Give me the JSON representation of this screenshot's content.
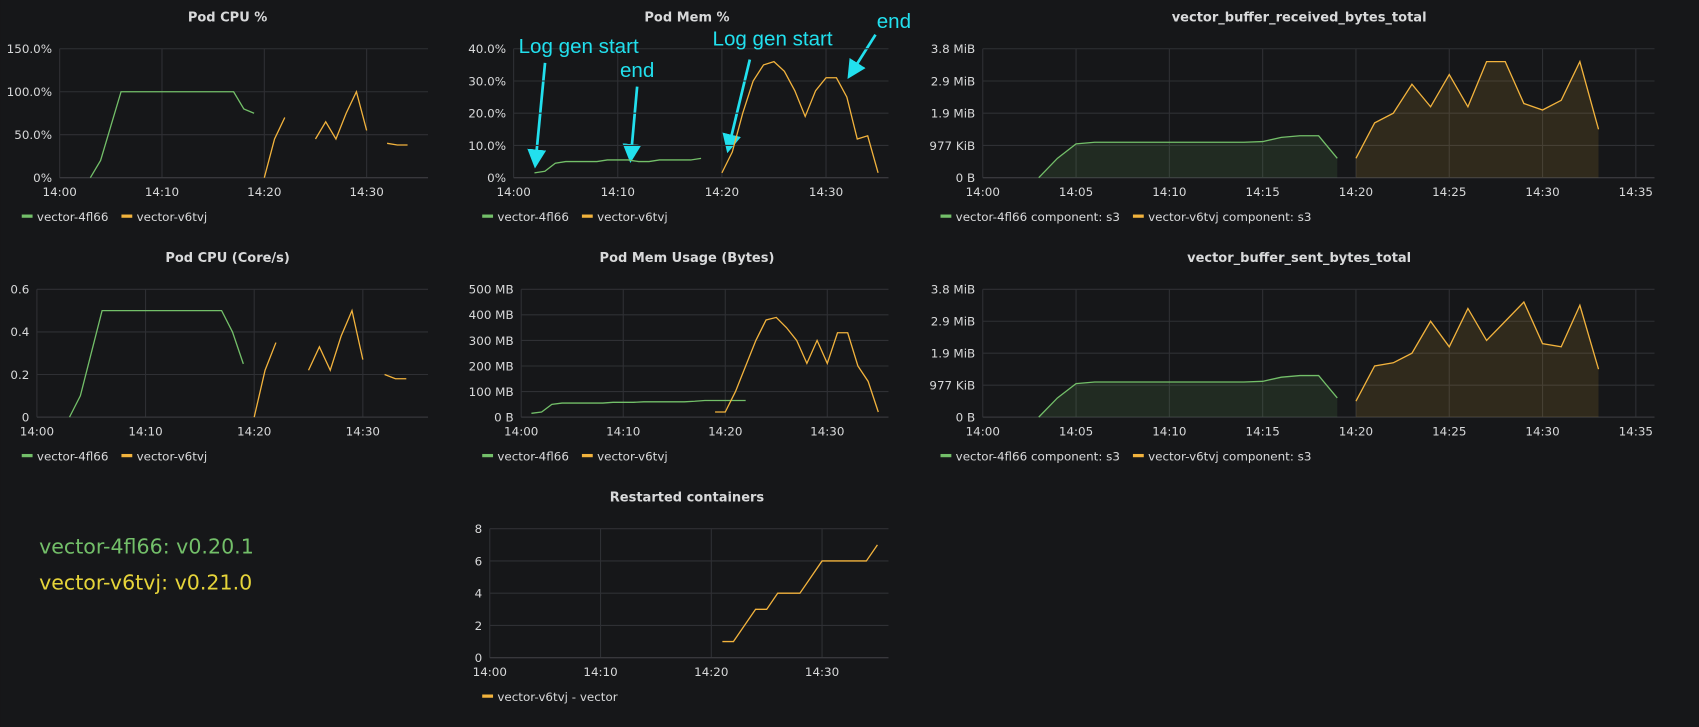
{
  "chart_data": [
    {
      "type": "line",
      "title": "Pod CPU %",
      "x": [
        "14:00",
        "14:01",
        "14:02",
        "14:03",
        "14:04",
        "14:05",
        "14:06",
        "14:07",
        "14:08",
        "14:09",
        "14:10",
        "14:11",
        "14:12",
        "14:13",
        "14:14",
        "14:15",
        "14:16",
        "14:17",
        "14:18",
        "14:19",
        "14:20",
        "14:21",
        "14:22",
        "14:23",
        "14:24",
        "14:25",
        "14:26",
        "14:27",
        "14:28",
        "14:29",
        "14:30",
        "14:31",
        "14:32",
        "14:33",
        "14:34",
        "14:35"
      ],
      "xlim": [
        "14:00",
        "14:36"
      ],
      "xticks": [
        "14:00",
        "14:10",
        "14:20",
        "14:30"
      ],
      "ylim": [
        0,
        150
      ],
      "yticks": [
        {
          "value": 0,
          "label": "0%"
        },
        {
          "value": 50,
          "label": "50.0%"
        },
        {
          "value": 100,
          "label": "100.0%"
        },
        {
          "value": 150,
          "label": "150.0%"
        }
      ],
      "grid": true,
      "series": [
        {
          "name": "vector-4fl66",
          "color": "#73bf69",
          "values": [
            null,
            null,
            null,
            0,
            20,
            60,
            100,
            100,
            100,
            100,
            100,
            100,
            100,
            100,
            100,
            100,
            100,
            100,
            80,
            75,
            null,
            null,
            null,
            null,
            null,
            null,
            null,
            null,
            null,
            null,
            null,
            null,
            null,
            null,
            null,
            null
          ]
        },
        {
          "name": "vector-v6tvj",
          "color": "#f2b33d",
          "values": [
            null,
            null,
            null,
            null,
            null,
            null,
            null,
            null,
            null,
            null,
            null,
            null,
            null,
            null,
            null,
            null,
            null,
            null,
            null,
            null,
            0,
            45,
            70,
            null,
            null,
            45,
            65,
            45,
            75,
            100,
            55,
            null,
            40,
            38,
            38,
            null
          ]
        }
      ]
    },
    {
      "type": "line",
      "title": "Pod Mem %",
      "x": [
        "14:00",
        "14:01",
        "14:02",
        "14:03",
        "14:04",
        "14:05",
        "14:06",
        "14:07",
        "14:08",
        "14:09",
        "14:10",
        "14:11",
        "14:12",
        "14:13",
        "14:14",
        "14:15",
        "14:16",
        "14:17",
        "14:18",
        "14:19",
        "14:20",
        "14:21",
        "14:22",
        "14:23",
        "14:24",
        "14:25",
        "14:26",
        "14:27",
        "14:28",
        "14:29",
        "14:30",
        "14:31",
        "14:32",
        "14:33",
        "14:34",
        "14:35"
      ],
      "xlim": [
        "14:00",
        "14:36"
      ],
      "xticks": [
        "14:00",
        "14:10",
        "14:20",
        "14:30"
      ],
      "ylim": [
        0,
        40
      ],
      "yticks": [
        {
          "value": 0,
          "label": "0%"
        },
        {
          "value": 10,
          "label": "10.0%"
        },
        {
          "value": 20,
          "label": "20.0%"
        },
        {
          "value": 30,
          "label": "30.0%"
        },
        {
          "value": 40,
          "label": "40.0%"
        }
      ],
      "grid": true,
      "annotations": [
        "Log gen start",
        "end",
        "Log gen start",
        "end"
      ],
      "series": [
        {
          "name": "vector-4fl66",
          "color": "#73bf69",
          "values": [
            null,
            null,
            1.5,
            2,
            4.5,
            5,
            5,
            5,
            5,
            5.5,
            5.5,
            5.5,
            5,
            5,
            5.5,
            5.5,
            5.5,
            5.5,
            6,
            null,
            null,
            null,
            null,
            null,
            null,
            null,
            null,
            null,
            null,
            null,
            null,
            null,
            null,
            null,
            null,
            null
          ]
        },
        {
          "name": "vector-v6tvj",
          "color": "#f2b33d",
          "values": [
            null,
            null,
            null,
            null,
            null,
            null,
            null,
            null,
            null,
            null,
            null,
            null,
            null,
            null,
            null,
            null,
            null,
            null,
            null,
            null,
            1.5,
            8,
            20,
            30,
            35,
            36,
            33,
            27,
            19,
            27,
            31,
            31,
            25,
            12,
            13,
            1.5
          ]
        }
      ]
    },
    {
      "type": "line",
      "title": "vector_buffer_received_bytes_total",
      "x": [
        "14:00",
        "14:01",
        "14:02",
        "14:03",
        "14:04",
        "14:05",
        "14:06",
        "14:07",
        "14:08",
        "14:09",
        "14:10",
        "14:11",
        "14:12",
        "14:13",
        "14:14",
        "14:15",
        "14:16",
        "14:17",
        "14:18",
        "14:19",
        "14:20",
        "14:21",
        "14:22",
        "14:23",
        "14:24",
        "14:25",
        "14:26",
        "14:27",
        "14:28",
        "14:29",
        "14:30",
        "14:31",
        "14:32",
        "14:33",
        "14:34",
        "14:35"
      ],
      "xlim": [
        "14:00",
        "14:36"
      ],
      "xticks": [
        "14:00",
        "14:05",
        "14:10",
        "14:15",
        "14:20",
        "14:25",
        "14:30",
        "14:35"
      ],
      "ylim": [
        0,
        4000000
      ],
      "yticks": [
        {
          "value": 0,
          "label": "0 B"
        },
        {
          "value": 1000000,
          "label": "977 KiB"
        },
        {
          "value": 2000000,
          "label": "1.9 MiB"
        },
        {
          "value": 3000000,
          "label": "2.9 MiB"
        },
        {
          "value": 4000000,
          "label": "3.8 MiB"
        }
      ],
      "grid": true,
      "fill_area": true,
      "series": [
        {
          "name": "vector-4fl66 component: s3",
          "color": "#73bf69",
          "values": [
            null,
            null,
            null,
            0,
            600000,
            1050000,
            1100000,
            1100000,
            1100000,
            1100000,
            1100000,
            1100000,
            1100000,
            1100000,
            1100000,
            1120000,
            1250000,
            1300000,
            1300000,
            600000,
            null,
            null,
            null,
            null,
            null,
            null,
            null,
            null,
            null,
            null,
            null,
            null,
            null,
            null,
            null,
            null
          ]
        },
        {
          "name": "vector-v6tvj component: s3",
          "color": "#f2b33d",
          "values": [
            null,
            null,
            null,
            null,
            null,
            null,
            null,
            null,
            null,
            null,
            null,
            null,
            null,
            null,
            null,
            null,
            null,
            null,
            null,
            null,
            600000,
            1700000,
            2000000,
            2900000,
            2200000,
            3200000,
            2200000,
            3600000,
            3600000,
            2300000,
            2100000,
            2400000,
            3600000,
            1500000,
            null,
            null
          ]
        }
      ]
    },
    {
      "type": "line",
      "title": "Pod CPU (Core/s)",
      "x": [
        "14:00",
        "14:01",
        "14:02",
        "14:03",
        "14:04",
        "14:05",
        "14:06",
        "14:07",
        "14:08",
        "14:09",
        "14:10",
        "14:11",
        "14:12",
        "14:13",
        "14:14",
        "14:15",
        "14:16",
        "14:17",
        "14:18",
        "14:19",
        "14:20",
        "14:21",
        "14:22",
        "14:23",
        "14:24",
        "14:25",
        "14:26",
        "14:27",
        "14:28",
        "14:29",
        "14:30",
        "14:31",
        "14:32",
        "14:33",
        "14:34",
        "14:35"
      ],
      "xlim": [
        "14:00",
        "14:36"
      ],
      "xticks": [
        "14:00",
        "14:10",
        "14:20",
        "14:30"
      ],
      "ylim": [
        0,
        0.6
      ],
      "yticks": [
        0,
        0.2,
        0.4,
        0.6
      ],
      "grid": true,
      "series": [
        {
          "name": "vector-4fl66",
          "color": "#73bf69",
          "values": [
            null,
            null,
            null,
            0,
            0.1,
            0.3,
            0.5,
            0.5,
            0.5,
            0.5,
            0.5,
            0.5,
            0.5,
            0.5,
            0.5,
            0.5,
            0.5,
            0.5,
            0.4,
            0.25,
            null,
            null,
            null,
            null,
            null,
            null,
            null,
            null,
            null,
            null,
            null,
            null,
            null,
            null,
            null,
            null
          ]
        },
        {
          "name": "vector-v6tvj",
          "color": "#f2b33d",
          "values": [
            null,
            null,
            null,
            null,
            null,
            null,
            null,
            null,
            null,
            null,
            null,
            null,
            null,
            null,
            null,
            null,
            null,
            null,
            null,
            null,
            0,
            0.22,
            0.35,
            null,
            null,
            0.22,
            0.33,
            0.22,
            0.38,
            0.5,
            0.27,
            null,
            0.2,
            0.18,
            0.18,
            null
          ]
        }
      ]
    },
    {
      "type": "line",
      "title": "Pod Mem Usage (Bytes)",
      "x": [
        "14:00",
        "14:01",
        "14:02",
        "14:03",
        "14:04",
        "14:05",
        "14:06",
        "14:07",
        "14:08",
        "14:09",
        "14:10",
        "14:11",
        "14:12",
        "14:13",
        "14:14",
        "14:15",
        "14:16",
        "14:17",
        "14:18",
        "14:19",
        "14:20",
        "14:21",
        "14:22",
        "14:23",
        "14:24",
        "14:25",
        "14:26",
        "14:27",
        "14:28",
        "14:29",
        "14:30",
        "14:31",
        "14:32",
        "14:33",
        "14:34",
        "14:35"
      ],
      "xlim": [
        "14:00",
        "14:36"
      ],
      "xticks": [
        "14:00",
        "14:10",
        "14:20",
        "14:30"
      ],
      "ylim": [
        0,
        500
      ],
      "yticks": [
        {
          "value": 0,
          "label": "0 B"
        },
        {
          "value": 100,
          "label": "100 MB"
        },
        {
          "value": 200,
          "label": "200 MB"
        },
        {
          "value": 300,
          "label": "300 MB"
        },
        {
          "value": 400,
          "label": "400 MB"
        },
        {
          "value": 500,
          "label": "500 MB"
        }
      ],
      "grid": true,
      "series": [
        {
          "name": "vector-4fl66",
          "color": "#73bf69",
          "values": [
            null,
            15,
            20,
            50,
            55,
            55,
            55,
            55,
            55,
            58,
            58,
            58,
            60,
            60,
            60,
            60,
            60,
            62,
            65,
            65,
            65,
            65,
            65,
            null,
            null,
            null,
            null,
            null,
            null,
            null,
            null,
            null,
            null,
            null,
            null,
            null
          ]
        },
        {
          "name": "vector-v6tvj",
          "color": "#f2b33d",
          "values": [
            null,
            null,
            null,
            null,
            null,
            null,
            null,
            null,
            null,
            null,
            null,
            null,
            null,
            null,
            null,
            null,
            null,
            null,
            null,
            20,
            20,
            100,
            200,
            300,
            380,
            390,
            350,
            300,
            210,
            300,
            210,
            330,
            330,
            200,
            140,
            20
          ]
        }
      ]
    },
    {
      "type": "line",
      "title": "vector_buffer_sent_bytes_total",
      "x": [
        "14:00",
        "14:01",
        "14:02",
        "14:03",
        "14:04",
        "14:05",
        "14:06",
        "14:07",
        "14:08",
        "14:09",
        "14:10",
        "14:11",
        "14:12",
        "14:13",
        "14:14",
        "14:15",
        "14:16",
        "14:17",
        "14:18",
        "14:19",
        "14:20",
        "14:21",
        "14:22",
        "14:23",
        "14:24",
        "14:25",
        "14:26",
        "14:27",
        "14:28",
        "14:29",
        "14:30",
        "14:31",
        "14:32",
        "14:33",
        "14:34",
        "14:35"
      ],
      "xlim": [
        "14:00",
        "14:36"
      ],
      "xticks": [
        "14:00",
        "14:05",
        "14:10",
        "14:15",
        "14:20",
        "14:25",
        "14:30",
        "14:35"
      ],
      "ylim": [
        0,
        4000000
      ],
      "yticks": [
        {
          "value": 0,
          "label": "0 B"
        },
        {
          "value": 1000000,
          "label": "977 KiB"
        },
        {
          "value": 2000000,
          "label": "1.9 MiB"
        },
        {
          "value": 3000000,
          "label": "2.9 MiB"
        },
        {
          "value": 4000000,
          "label": "3.8 MiB"
        }
      ],
      "grid": true,
      "fill_area": true,
      "series": [
        {
          "name": "vector-4fl66 component: s3",
          "color": "#73bf69",
          "values": [
            null,
            null,
            null,
            0,
            600000,
            1050000,
            1100000,
            1100000,
            1100000,
            1100000,
            1100000,
            1100000,
            1100000,
            1100000,
            1100000,
            1120000,
            1250000,
            1300000,
            1300000,
            600000,
            null,
            null,
            null,
            null,
            null,
            null,
            null,
            null,
            null,
            null,
            null,
            null,
            null,
            null,
            null,
            null
          ]
        },
        {
          "name": "vector-v6tvj component: s3",
          "color": "#f2b33d",
          "values": [
            null,
            null,
            null,
            null,
            null,
            null,
            null,
            null,
            null,
            null,
            null,
            null,
            null,
            null,
            null,
            null,
            null,
            null,
            null,
            null,
            500000,
            1600000,
            1700000,
            2000000,
            3000000,
            2200000,
            3400000,
            2400000,
            3000000,
            3600000,
            2300000,
            2200000,
            3500000,
            1500000,
            null,
            null
          ]
        }
      ]
    },
    {
      "type": "line",
      "title": "Restarted containers",
      "x": [
        "14:00",
        "14:01",
        "14:02",
        "14:03",
        "14:04",
        "14:05",
        "14:06",
        "14:07",
        "14:08",
        "14:09",
        "14:10",
        "14:11",
        "14:12",
        "14:13",
        "14:14",
        "14:15",
        "14:16",
        "14:17",
        "14:18",
        "14:19",
        "14:20",
        "14:21",
        "14:22",
        "14:23",
        "14:24",
        "14:25",
        "14:26",
        "14:27",
        "14:28",
        "14:29",
        "14:30",
        "14:31",
        "14:32",
        "14:33",
        "14:34",
        "14:35"
      ],
      "xlim": [
        "14:00",
        "14:36"
      ],
      "xticks": [
        "14:00",
        "14:10",
        "14:20",
        "14:30"
      ],
      "ylim": [
        0,
        8
      ],
      "yticks": [
        0,
        2,
        4,
        6,
        8
      ],
      "grid": true,
      "series": [
        {
          "name": "vector-v6tvj - vector",
          "color": "#f2b33d",
          "values": [
            null,
            null,
            null,
            null,
            null,
            null,
            null,
            null,
            null,
            null,
            null,
            null,
            null,
            null,
            null,
            null,
            null,
            null,
            null,
            null,
            null,
            1,
            1,
            2,
            3,
            3,
            4,
            4,
            4,
            5,
            6,
            6,
            6,
            6,
            6,
            7
          ]
        }
      ]
    }
  ],
  "text_panel": {
    "lines": [
      "vector-4fl66: v0.20.1",
      "vector-v6tvj: v0.21.0"
    ]
  }
}
